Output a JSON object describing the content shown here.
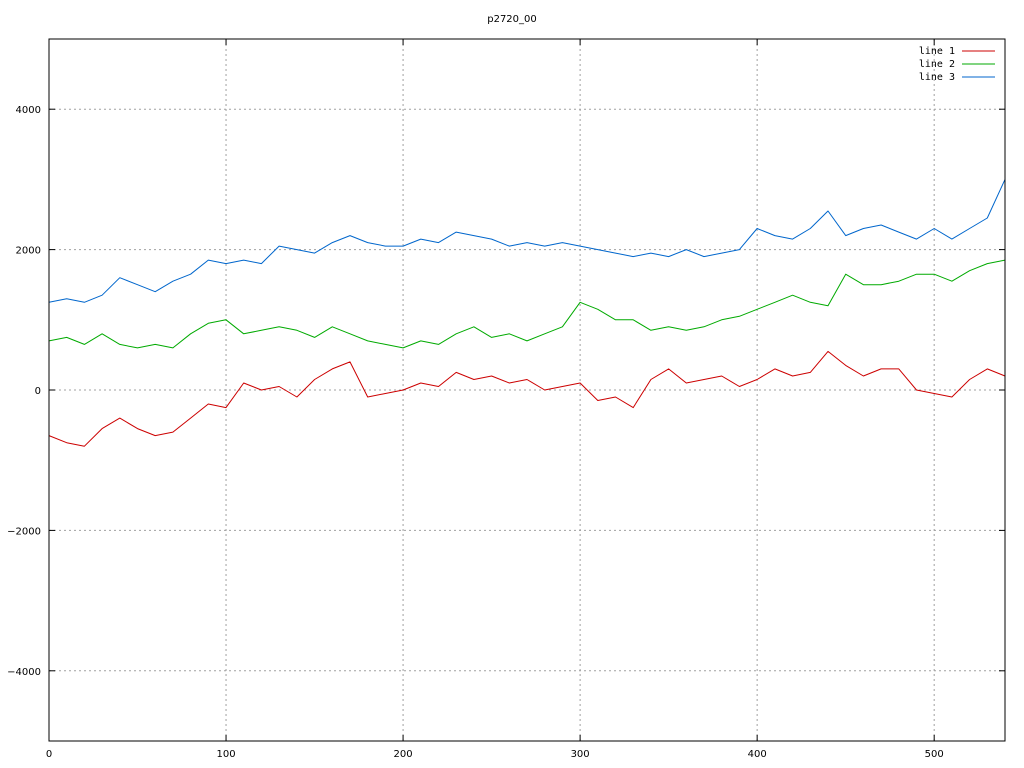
{
  "chart_data": {
    "type": "line",
    "title": "p2720_00",
    "xlabel": "",
    "ylabel": "",
    "xlim": [
      0,
      540
    ],
    "ylim": [
      -5000,
      5000
    ],
    "xticks": [
      0,
      100,
      200,
      300,
      400,
      500
    ],
    "yticks": [
      -4000,
      -2000,
      0,
      2000,
      4000
    ],
    "xtick_labels": [
      "0",
      "100",
      "200",
      "300",
      "400",
      "500"
    ],
    "ytick_labels": [
      "−4000",
      "−2000",
      "0",
      "2000",
      "4000"
    ],
    "grid": true,
    "legend_position": "top-right",
    "series": [
      {
        "name": "line 1",
        "color": "#cc0000",
        "x": [
          0,
          10,
          20,
          30,
          40,
          50,
          60,
          70,
          80,
          90,
          100,
          110,
          120,
          130,
          140,
          150,
          160,
          170,
          180,
          190,
          200,
          210,
          220,
          230,
          240,
          250,
          260,
          270,
          280,
          290,
          300,
          310,
          320,
          330,
          340,
          350,
          360,
          370,
          380,
          390,
          400,
          410,
          420,
          430,
          440,
          450,
          460,
          470,
          480,
          490,
          500,
          510,
          520,
          530,
          540
        ],
        "y": [
          -650,
          -750,
          -800,
          -550,
          -400,
          -550,
          -650,
          -600,
          -400,
          -200,
          -250,
          100,
          0,
          50,
          -100,
          150,
          300,
          400,
          -100,
          -50,
          0,
          100,
          50,
          250,
          150,
          200,
          100,
          150,
          0,
          50,
          100,
          -150,
          -100,
          -250,
          150,
          300,
          100,
          150,
          200,
          50,
          150,
          300,
          200,
          250,
          550,
          350,
          200,
          300,
          300,
          0,
          -50,
          -100,
          150,
          300,
          200
        ]
      },
      {
        "name": "line 2",
        "color": "#00aa00",
        "x": [
          0,
          10,
          20,
          30,
          40,
          50,
          60,
          70,
          80,
          90,
          100,
          110,
          120,
          130,
          140,
          150,
          160,
          170,
          180,
          190,
          200,
          210,
          220,
          230,
          240,
          250,
          260,
          270,
          280,
          290,
          300,
          310,
          320,
          330,
          340,
          350,
          360,
          370,
          380,
          390,
          400,
          410,
          420,
          430,
          440,
          450,
          460,
          470,
          480,
          490,
          500,
          510,
          520,
          530,
          540
        ],
        "y": [
          700,
          750,
          650,
          800,
          650,
          600,
          650,
          600,
          800,
          950,
          1000,
          800,
          850,
          900,
          850,
          750,
          900,
          800,
          700,
          650,
          600,
          700,
          650,
          800,
          900,
          750,
          800,
          700,
          800,
          900,
          1250,
          1150,
          1000,
          1000,
          850,
          900,
          850,
          900,
          1000,
          1050,
          1150,
          1250,
          1350,
          1250,
          1200,
          1650,
          1500,
          1500,
          1550,
          1650,
          1650,
          1550,
          1700,
          1800,
          1850
        ]
      },
      {
        "name": "line 3",
        "color": "#0066cc",
        "x": [
          0,
          10,
          20,
          30,
          40,
          50,
          60,
          70,
          80,
          90,
          100,
          110,
          120,
          130,
          140,
          150,
          160,
          170,
          180,
          190,
          200,
          210,
          220,
          230,
          240,
          250,
          260,
          270,
          280,
          290,
          300,
          310,
          320,
          330,
          340,
          350,
          360,
          370,
          380,
          390,
          400,
          410,
          420,
          430,
          440,
          450,
          460,
          470,
          480,
          490,
          500,
          510,
          520,
          530,
          540
        ],
        "y": [
          1250,
          1300,
          1250,
          1350,
          1600,
          1500,
          1400,
          1550,
          1650,
          1850,
          1800,
          1850,
          1800,
          2050,
          2000,
          1950,
          2100,
          2200,
          2100,
          2050,
          2050,
          2150,
          2100,
          2250,
          2200,
          2150,
          2050,
          2100,
          2050,
          2100,
          2050,
          2000,
          1950,
          1900,
          1950,
          1900,
          2000,
          1900,
          1950,
          2000,
          2300,
          2200,
          2150,
          2300,
          2550,
          2200,
          2300,
          2350,
          2250,
          2150,
          2300,
          2150,
          2300,
          2450,
          3000
        ]
      }
    ]
  }
}
